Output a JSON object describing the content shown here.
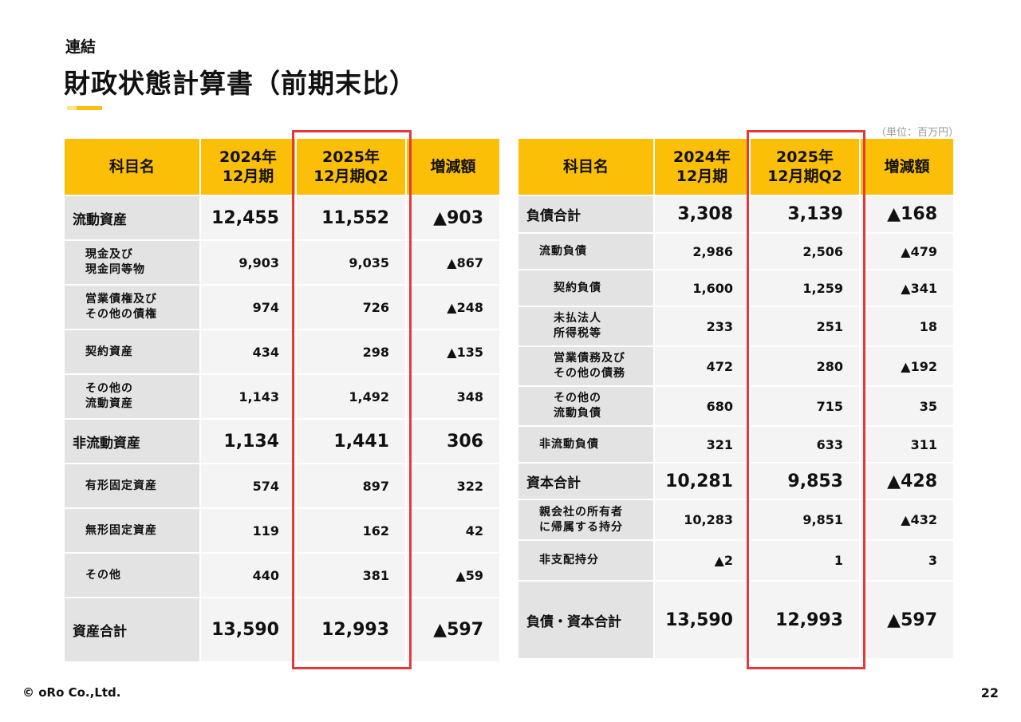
{
  "header": {
    "subtitle": "連結",
    "title": "財政状態計算書（前期末比）",
    "unit": "（単位：百万円）"
  },
  "columns": [
    "科目名",
    "2024年\n12月期",
    "2025年\n12月期Q2",
    "増減額"
  ],
  "assets": [
    {
      "label": "流動資産",
      "level": 0,
      "size": "big",
      "v2024": "12,455",
      "v2025": "11,552",
      "diff": "▲903"
    },
    {
      "label": "現金及び\n現金同等物",
      "level": 1,
      "size": "small",
      "v2024": "9,903",
      "v2025": "9,035",
      "diff": "▲867"
    },
    {
      "label": "営業債権及び\nその他の債権",
      "level": 1,
      "size": "small",
      "v2024": "974",
      "v2025": "726",
      "diff": "▲248"
    },
    {
      "label": "契約資産",
      "level": 1,
      "size": "small",
      "v2024": "434",
      "v2025": "298",
      "diff": "▲135"
    },
    {
      "label": "その他の\n流動資産",
      "level": 1,
      "size": "small",
      "v2024": "1,143",
      "v2025": "1,492",
      "diff": "348"
    },
    {
      "label": "非流動資産",
      "level": 0,
      "size": "big",
      "v2024": "1,134",
      "v2025": "1,441",
      "diff": "306"
    },
    {
      "label": "有形固定資産",
      "level": 1,
      "size": "small",
      "v2024": "574",
      "v2025": "897",
      "diff": "322"
    },
    {
      "label": "無形固定資産",
      "level": 1,
      "size": "small",
      "v2024": "119",
      "v2025": "162",
      "diff": "42"
    },
    {
      "label": "その他",
      "level": 1,
      "size": "small",
      "v2024": "440",
      "v2025": "381",
      "diff": "▲59"
    },
    {
      "label": "資産合計",
      "level": 0,
      "size": "big",
      "v2024": "13,590",
      "v2025": "12,993",
      "diff": "▲597"
    }
  ],
  "liabilities": [
    {
      "label": "負債合計",
      "level": 0,
      "size": "big",
      "v2024": "3,308",
      "v2025": "3,139",
      "diff": "▲168"
    },
    {
      "label": "流動負債",
      "level": 1,
      "size": "small",
      "v2024": "2,986",
      "v2025": "2,506",
      "diff": "▲479"
    },
    {
      "label": "契約負債",
      "level": 2,
      "size": "small",
      "v2024": "1,600",
      "v2025": "1,259",
      "diff": "▲341"
    },
    {
      "label": "未払法人\n所得税等",
      "level": 2,
      "size": "small",
      "v2024": "233",
      "v2025": "251",
      "diff": "18"
    },
    {
      "label": "営業債務及び\nその他の債務",
      "level": 2,
      "size": "small",
      "v2024": "472",
      "v2025": "280",
      "diff": "▲192"
    },
    {
      "label": "その他の\n流動負債",
      "level": 2,
      "size": "small",
      "v2024": "680",
      "v2025": "715",
      "diff": "35"
    },
    {
      "label": "非流動負債",
      "level": 1,
      "size": "small",
      "v2024": "321",
      "v2025": "633",
      "diff": "311"
    },
    {
      "label": "資本合計",
      "level": 0,
      "size": "big",
      "v2024": "10,281",
      "v2025": "9,853",
      "diff": "▲428"
    },
    {
      "label": "親会社の所有者\nに帰属する持分",
      "level": 1,
      "size": "small",
      "v2024": "10,283",
      "v2025": "9,851",
      "diff": "▲432"
    },
    {
      "label": "非支配持分",
      "level": 1,
      "size": "small",
      "v2024": "▲2",
      "v2025": "1",
      "diff": "3"
    },
    {
      "label": "負債・資本合計",
      "level": 0,
      "size": "big",
      "v2024": "13,590",
      "v2025": "12,993",
      "diff": "▲597"
    }
  ],
  "footer": {
    "copyright": "© oRo Co.,Ltd.",
    "page": "22"
  },
  "colors": {
    "header_bg": "#fcbf07",
    "highlight_border": "#e23a3a",
    "label_bg": "#e3e3e3",
    "cell_bg": "#f4f4f4"
  }
}
